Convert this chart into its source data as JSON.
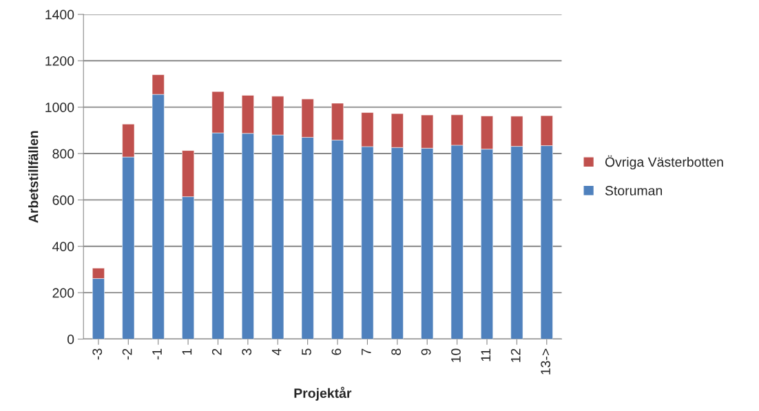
{
  "chart_data": {
    "type": "bar",
    "stacked": true,
    "xlabel": "Projektår",
    "ylabel": "Arbetstillfällen",
    "categories": [
      "-3",
      "-2",
      "-1",
      "1",
      "2",
      "3",
      "4",
      "5",
      "6",
      "7",
      "8",
      "9",
      "10",
      "11",
      "12",
      "13->"
    ],
    "series": [
      {
        "name": "Storuman",
        "color": "#4f81bd",
        "values": [
          261,
          785,
          1055,
          614,
          889,
          887,
          880,
          870,
          858,
          830,
          826,
          823,
          836,
          819,
          831,
          834
        ]
      },
      {
        "name": "Övriga Västerbotten",
        "color": "#c0504d",
        "values": [
          45,
          142,
          85,
          199,
          178,
          164,
          167,
          165,
          159,
          147,
          146,
          143,
          131,
          143,
          130,
          129
        ]
      }
    ],
    "ylim": [
      0,
      1400
    ],
    "yticks": [
      0,
      200,
      400,
      600,
      800,
      1000,
      1200,
      1400
    ],
    "grid": "y",
    "legend": "right"
  }
}
